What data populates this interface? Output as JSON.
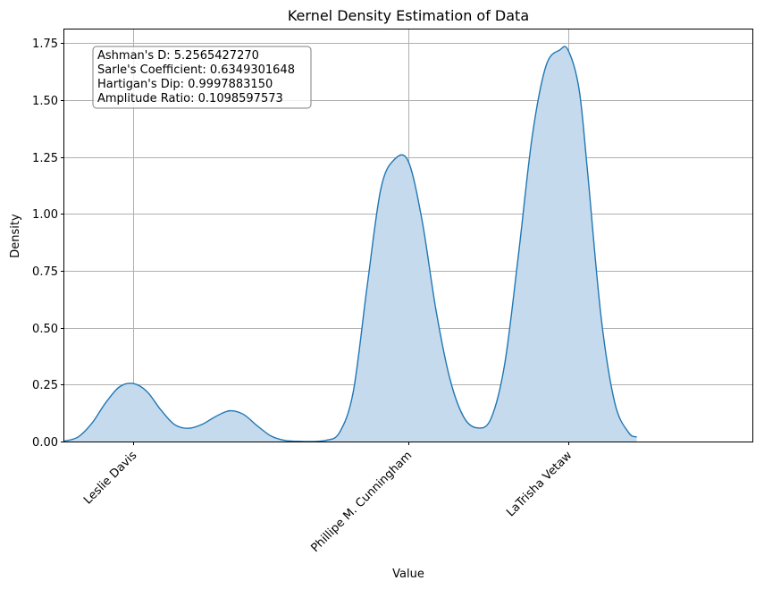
{
  "chart_data": {
    "type": "area",
    "title": "Kernel Density Estimation of Data",
    "xlabel": "Value",
    "ylabel": "Density",
    "ylim": [
      0,
      1.81
    ],
    "xlim": [
      -0.25,
      2.25
    ],
    "grid": true,
    "x_categories": [
      {
        "label": "Leslie Davis",
        "x": 0
      },
      {
        "label": "Phillipe M. Cunningham",
        "x": 1
      },
      {
        "label": "LaTrisha Vetaw",
        "x": 1.58
      }
    ],
    "y_ticks": [
      {
        "value": 0.0,
        "label": "0.00"
      },
      {
        "value": 0.25,
        "label": "0.25"
      },
      {
        "value": 0.5,
        "label": "0.50"
      },
      {
        "value": 0.75,
        "label": "0.75"
      },
      {
        "value": 1.0,
        "label": "1.00"
      },
      {
        "value": 1.25,
        "label": "1.25"
      },
      {
        "value": 1.5,
        "label": "1.50"
      },
      {
        "value": 1.75,
        "label": "1.75"
      }
    ],
    "series": [
      {
        "color": "#1f77b4",
        "fill": "#c5dbed",
        "x": [
          -0.25,
          -0.2,
          -0.15,
          -0.1,
          -0.05,
          0.0,
          0.05,
          0.1,
          0.15,
          0.2,
          0.25,
          0.3,
          0.35,
          0.4,
          0.45,
          0.5,
          0.55,
          0.6,
          0.65,
          0.7,
          0.75,
          0.8,
          0.85,
          0.9,
          0.95,
          1.0,
          1.05,
          1.1,
          1.15,
          1.2,
          1.25,
          1.3,
          1.35,
          1.4,
          1.45,
          1.5,
          1.55,
          1.58,
          1.62,
          1.65,
          1.7,
          1.75,
          1.8,
          1.83
        ],
        "y": [
          0.002,
          0.02,
          0.08,
          0.17,
          0.24,
          0.255,
          0.22,
          0.14,
          0.075,
          0.058,
          0.075,
          0.11,
          0.135,
          0.12,
          0.07,
          0.025,
          0.005,
          0.001,
          0.0,
          0.005,
          0.04,
          0.22,
          0.68,
          1.11,
          1.24,
          1.23,
          0.97,
          0.58,
          0.28,
          0.11,
          0.06,
          0.1,
          0.34,
          0.82,
          1.34,
          1.65,
          1.72,
          1.72,
          1.55,
          1.2,
          0.55,
          0.17,
          0.04,
          0.02
        ]
      }
    ]
  },
  "stats_box": {
    "lines": [
      "Ashman's D: 5.2565427270",
      "Sarle's Coefficient: 0.6349301648",
      "Hartigan's Dip: 0.9997883150",
      "Amplitude Ratio: 0.1098597573"
    ]
  }
}
